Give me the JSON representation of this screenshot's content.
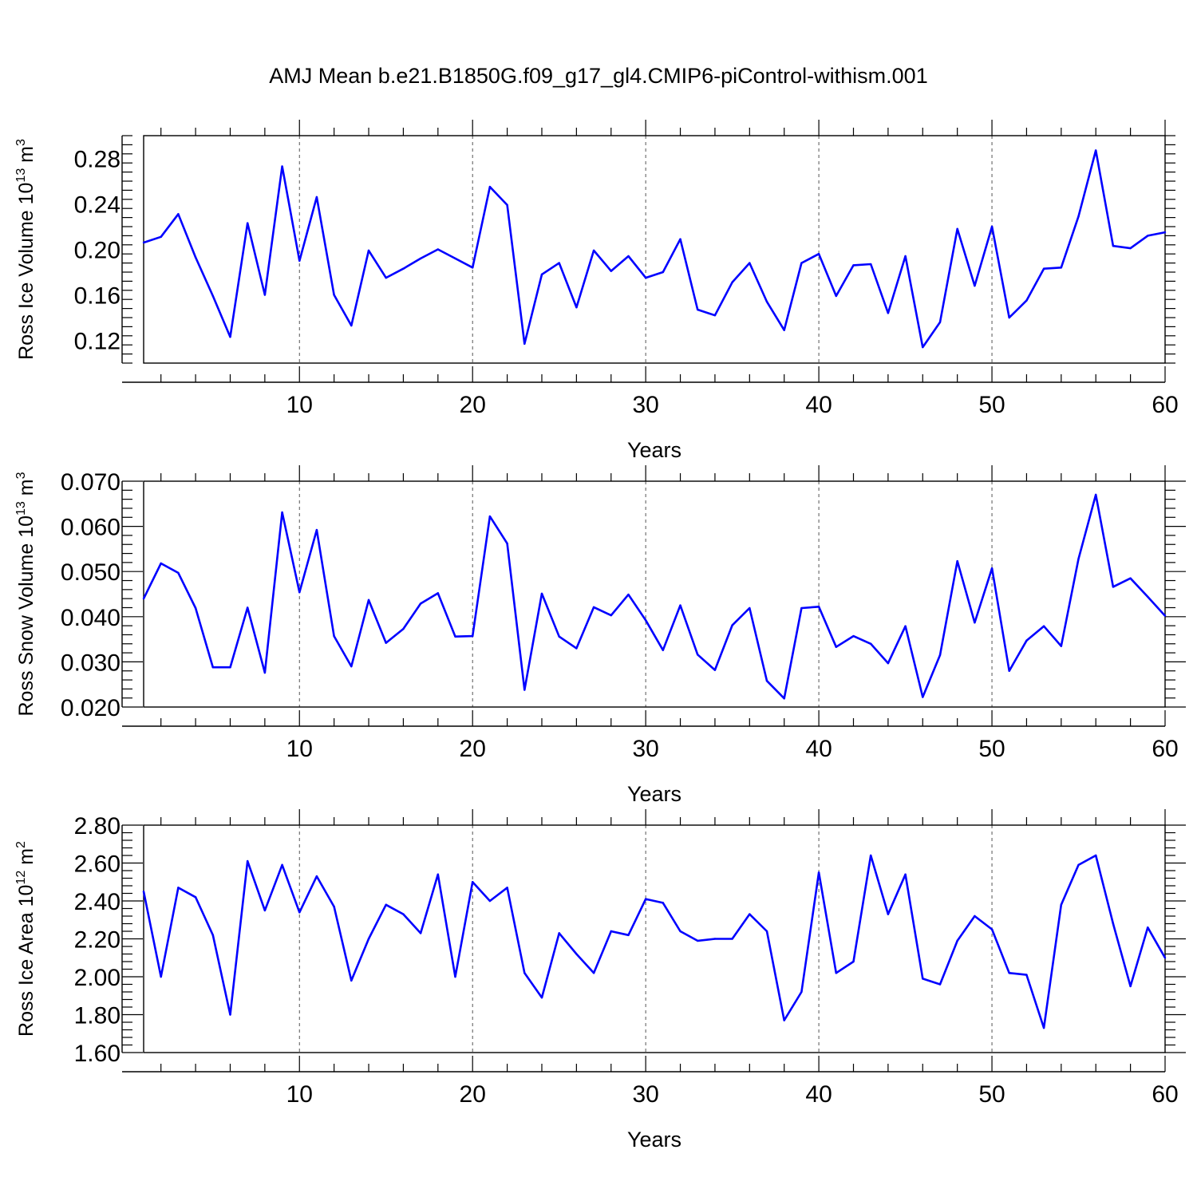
{
  "title": "AMJ Mean b.e21.B1850G.f09_g17_gl4.CMIP6-piControl-withism.001",
  "colors": {
    "line": "#0000ff",
    "axis": "#000000",
    "grid": "#555555"
  },
  "chart_data": [
    {
      "type": "line",
      "xlabel": "Years",
      "ylabel": "Ross Ice Volume 10",
      "ylabel_exp": "13",
      "ylabel_unit": "m",
      "ylabel_unit_exp": "3",
      "xlim": [
        1,
        60
      ],
      "ylim": [
        0.1,
        0.3
      ],
      "grid": "vertical dashed",
      "xticks": [
        10,
        20,
        30,
        40,
        50,
        60
      ],
      "xtick_labels": [
        "10",
        "20",
        "30",
        "40",
        "50",
        "60"
      ],
      "yticks": [
        0.12,
        0.16,
        0.2,
        0.24,
        0.28
      ],
      "ytick_labels": [
        "0.12",
        "0.16",
        "0.20",
        "0.24",
        "0.28"
      ],
      "x": [
        1,
        2,
        3,
        4,
        5,
        6,
        7,
        8,
        9,
        10,
        11,
        12,
        13,
        14,
        15,
        16,
        17,
        18,
        19,
        20,
        21,
        22,
        23,
        24,
        25,
        26,
        27,
        28,
        29,
        30,
        31,
        32,
        33,
        34,
        35,
        36,
        37,
        38,
        39,
        40,
        41,
        42,
        43,
        44,
        45,
        46,
        47,
        48,
        49,
        50,
        51,
        52,
        53,
        54,
        55,
        56,
        57,
        58,
        59,
        60
      ],
      "values": [
        0.206,
        0.211,
        0.231,
        0.193,
        0.159,
        0.123,
        0.223,
        0.16,
        0.273,
        0.19,
        0.246,
        0.16,
        0.133,
        0.199,
        0.175,
        0.183,
        0.192,
        0.2,
        0.192,
        0.184,
        0.255,
        0.239,
        0.117,
        0.178,
        0.188,
        0.149,
        0.199,
        0.181,
        0.194,
        0.175,
        0.18,
        0.209,
        0.147,
        0.142,
        0.171,
        0.188,
        0.154,
        0.129,
        0.188,
        0.196,
        0.159,
        0.186,
        0.187,
        0.144,
        0.194,
        0.114,
        0.136,
        0.218,
        0.168,
        0.22,
        0.14,
        0.155,
        0.183,
        0.184,
        0.229,
        0.287,
        0.203,
        0.201,
        0.212,
        0.215
      ]
    },
    {
      "type": "line",
      "xlabel": "Years",
      "ylabel": "Ross Snow Volume 10",
      "ylabel_exp": "13",
      "ylabel_unit": "m",
      "ylabel_unit_exp": "3",
      "xlim": [
        1,
        60
      ],
      "ylim": [
        0.02,
        0.07
      ],
      "grid": "vertical dashed",
      "xticks": [
        10,
        20,
        30,
        40,
        50,
        60
      ],
      "xtick_labels": [
        "10",
        "20",
        "30",
        "40",
        "50",
        "60"
      ],
      "yticks": [
        0.02,
        0.03,
        0.04,
        0.05,
        0.06,
        0.07
      ],
      "ytick_labels": [
        "0.020",
        "0.030",
        "0.040",
        "0.050",
        "0.060",
        "0.070"
      ],
      "x": [
        1,
        2,
        3,
        4,
        5,
        6,
        7,
        8,
        9,
        10,
        11,
        12,
        13,
        14,
        15,
        16,
        17,
        18,
        19,
        20,
        21,
        22,
        23,
        24,
        25,
        26,
        27,
        28,
        29,
        30,
        31,
        32,
        33,
        34,
        35,
        36,
        37,
        38,
        39,
        40,
        41,
        42,
        43,
        44,
        45,
        46,
        47,
        48,
        49,
        50,
        51,
        52,
        53,
        54,
        55,
        56,
        57,
        58,
        59,
        60
      ],
      "values": [
        0.044,
        0.0518,
        0.0497,
        0.0419,
        0.0288,
        0.0288,
        0.042,
        0.0276,
        0.0631,
        0.0454,
        0.0592,
        0.0357,
        0.029,
        0.0437,
        0.0342,
        0.0373,
        0.0429,
        0.0452,
        0.0356,
        0.0357,
        0.0622,
        0.0562,
        0.0238,
        0.0451,
        0.0356,
        0.033,
        0.0421,
        0.0403,
        0.0449,
        0.0392,
        0.0326,
        0.0425,
        0.0316,
        0.0282,
        0.0381,
        0.0419,
        0.0258,
        0.0219,
        0.0419,
        0.0422,
        0.0333,
        0.0357,
        0.034,
        0.0297,
        0.0379,
        0.0222,
        0.0315,
        0.0523,
        0.0387,
        0.0507,
        0.028,
        0.0347,
        0.0379,
        0.0335,
        0.0528,
        0.067,
        0.0466,
        0.0485,
        0.0444,
        0.0402
      ]
    },
    {
      "type": "line",
      "xlabel": "Years",
      "ylabel": "Ross Ice Area 10",
      "ylabel_exp": "12",
      "ylabel_unit": "m",
      "ylabel_unit_exp": "2",
      "xlim": [
        1,
        60
      ],
      "ylim": [
        1.6,
        2.8
      ],
      "grid": "vertical dashed",
      "xticks": [
        10,
        20,
        30,
        40,
        50,
        60
      ],
      "xtick_labels": [
        "10",
        "20",
        "30",
        "40",
        "50",
        "60"
      ],
      "yticks": [
        1.6,
        1.8,
        2.0,
        2.2,
        2.4,
        2.6,
        2.8
      ],
      "ytick_labels": [
        "1.60",
        "1.80",
        "2.00",
        "2.20",
        "2.40",
        "2.60",
        "2.80"
      ],
      "x": [
        1,
        2,
        3,
        4,
        5,
        6,
        7,
        8,
        9,
        10,
        11,
        12,
        13,
        14,
        15,
        16,
        17,
        18,
        19,
        20,
        21,
        22,
        23,
        24,
        25,
        26,
        27,
        28,
        29,
        30,
        31,
        32,
        33,
        34,
        35,
        36,
        37,
        38,
        39,
        40,
        41,
        42,
        43,
        44,
        45,
        46,
        47,
        48,
        49,
        50,
        51,
        52,
        53,
        54,
        55,
        56,
        57,
        58,
        59,
        60
      ],
      "values": [
        2.45,
        2.0,
        2.47,
        2.42,
        2.22,
        1.8,
        2.61,
        2.35,
        2.59,
        2.34,
        2.53,
        2.37,
        1.98,
        2.2,
        2.38,
        2.33,
        2.23,
        2.54,
        2.0,
        2.5,
        2.4,
        2.47,
        2.02,
        1.89,
        2.23,
        2.12,
        2.02,
        2.24,
        2.22,
        2.41,
        2.39,
        2.24,
        2.19,
        2.2,
        2.2,
        2.33,
        2.24,
        1.77,
        1.92,
        2.55,
        2.02,
        2.08,
        2.64,
        2.33,
        2.54,
        1.99,
        1.96,
        2.19,
        2.32,
        2.25,
        2.02,
        2.01,
        1.73,
        2.38,
        2.59,
        2.64,
        2.28,
        1.95,
        2.26,
        2.1
      ]
    }
  ]
}
